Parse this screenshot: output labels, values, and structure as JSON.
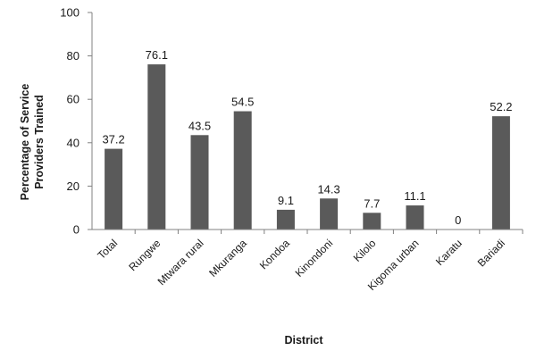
{
  "chart_data": {
    "type": "bar",
    "categories": [
      "Total",
      "Rungwe",
      "Mtwara rural",
      "Mkuranga",
      "Kondoa",
      "Kinondoni",
      "Kilolo",
      "Kigoma urban",
      "Karatu",
      "Bariadi"
    ],
    "values": [
      37.2,
      76.1,
      43.5,
      54.5,
      9.1,
      14.3,
      7.7,
      11.1,
      0,
      52.2
    ],
    "data_labels": [
      "37.2",
      "76.1",
      "43.5",
      "54.5",
      "9.1",
      "14.3",
      "7.7",
      "11.1",
      "0",
      "52.2"
    ],
    "xlabel": "District",
    "ylabel_lines": [
      "Percentage of Service",
      "Providers Trained"
    ],
    "ylim": [
      0,
      100
    ],
    "yticks": [
      0,
      20,
      40,
      60,
      80,
      100
    ],
    "grid": false,
    "legend": "none",
    "bar_color": "#5a5a5a"
  }
}
